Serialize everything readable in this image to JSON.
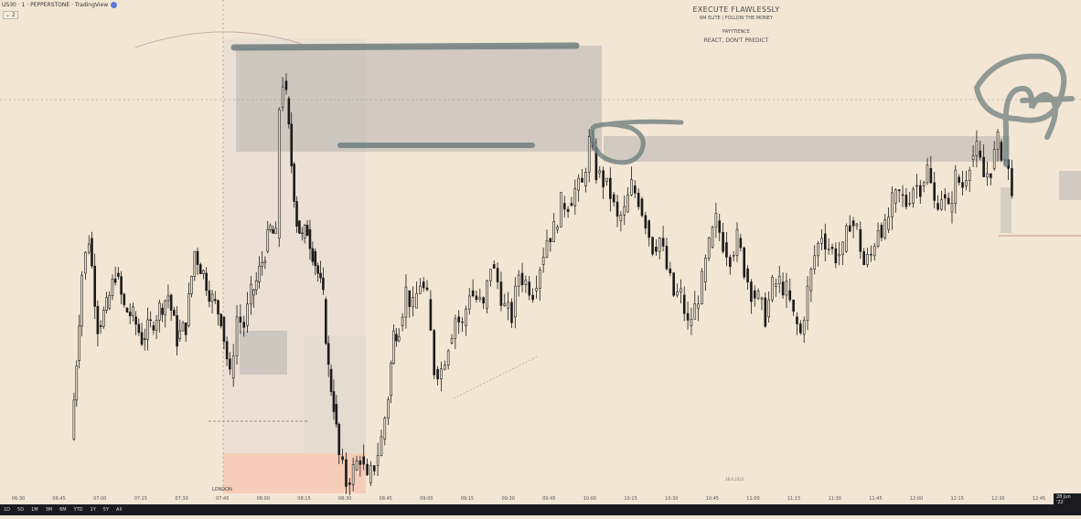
{
  "header": {
    "symbol": "US30 · 1 · PEPPERSTONE · TradingView",
    "badge": "8",
    "collapse_button": "⌄ 2"
  },
  "watermark": {
    "title": "EXECUTE FLAWLESSLY",
    "subtitle": "6M ELITE  |  FOLLOW THE MONEY",
    "line3": "PAYYTIENCE",
    "line4": "REACT, DON'T PREDICT"
  },
  "session_label": "LONDON",
  "date_pill": "28 Jun '22",
  "center_stamp": "28.6.2022",
  "timeframes": [
    "1D",
    "5D",
    "1M",
    "3M",
    "6M",
    "YTD",
    "1Y",
    "5Y",
    "All"
  ],
  "colors": {
    "background": "#f4e6d4",
    "candle": "#1a1a1a",
    "zone": "#a9a9a9",
    "marker": "#6f7f7f",
    "session_fill": "#f6c8b4"
  },
  "chart_data": {
    "type": "candlestick",
    "x_tick_labels": [
      "06:30",
      "06:45",
      "07:00",
      "07:15",
      "07:30",
      "07:45",
      "08:00",
      "08:15",
      "08:30",
      "08:45",
      "09:00",
      "09:15",
      "09:30",
      "09:45",
      "10:00",
      "10:15",
      "10:30",
      "10:45",
      "11:00",
      "11:15",
      "11:30",
      "11:45",
      "12:00",
      "12:15",
      "12:30",
      "12:45"
    ],
    "y_range": [
      0,
      100
    ],
    "grid": false,
    "path_points": [
      [
        0,
        12
      ],
      [
        3,
        30
      ],
      [
        6,
        50
      ],
      [
        10,
        58
      ],
      [
        15,
        38
      ],
      [
        20,
        42
      ],
      [
        25,
        50
      ],
      [
        30,
        42
      ],
      [
        35,
        40
      ],
      [
        40,
        35
      ],
      [
        45,
        38
      ],
      [
        50,
        42
      ],
      [
        55,
        45
      ],
      [
        60,
        35
      ],
      [
        65,
        38
      ],
      [
        70,
        55
      ],
      [
        75,
        50
      ],
      [
        80,
        44
      ],
      [
        85,
        40
      ],
      [
        90,
        26
      ],
      [
        94,
        40
      ],
      [
        98,
        38
      ],
      [
        102,
        45
      ],
      [
        105,
        48
      ],
      [
        110,
        55
      ],
      [
        113,
        60
      ],
      [
        116,
        58
      ],
      [
        118,
        88
      ],
      [
        120,
        94
      ],
      [
        122,
        90
      ],
      [
        125,
        75
      ],
      [
        128,
        62
      ],
      [
        131,
        58
      ],
      [
        134,
        60
      ],
      [
        137,
        55
      ],
      [
        140,
        50
      ],
      [
        143,
        44
      ],
      [
        146,
        28
      ],
      [
        149,
        20
      ],
      [
        152,
        8
      ],
      [
        156,
        2
      ],
      [
        160,
        5
      ],
      [
        164,
        8
      ],
      [
        168,
        2
      ],
      [
        172,
        6
      ],
      [
        176,
        12
      ],
      [
        180,
        22
      ],
      [
        183,
        36
      ],
      [
        186,
        38
      ],
      [
        190,
        46
      ],
      [
        194,
        42
      ],
      [
        198,
        48
      ],
      [
        202,
        44
      ],
      [
        206,
        28
      ],
      [
        210,
        28
      ],
      [
        214,
        34
      ],
      [
        218,
        40
      ],
      [
        222,
        38
      ],
      [
        226,
        46
      ],
      [
        230,
        44
      ],
      [
        234,
        42
      ],
      [
        238,
        52
      ],
      [
        242,
        48
      ],
      [
        246,
        42
      ],
      [
        250,
        40
      ],
      [
        254,
        50
      ],
      [
        258,
        48
      ],
      [
        262,
        46
      ],
      [
        266,
        52
      ],
      [
        270,
        58
      ],
      [
        274,
        60
      ],
      [
        278,
        66
      ],
      [
        282,
        66
      ],
      [
        286,
        69
      ],
      [
        290,
        70
      ],
      [
        294,
        80
      ],
      [
        298,
        73
      ],
      [
        302,
        71
      ],
      [
        306,
        68
      ],
      [
        310,
        62
      ],
      [
        314,
        64
      ],
      [
        318,
        70
      ],
      [
        322,
        67
      ],
      [
        326,
        62
      ],
      [
        330,
        56
      ],
      [
        334,
        58
      ],
      [
        338,
        51
      ],
      [
        342,
        45
      ],
      [
        346,
        45
      ],
      [
        350,
        38
      ],
      [
        354,
        42
      ],
      [
        358,
        48
      ],
      [
        362,
        56
      ],
      [
        366,
        62
      ],
      [
        370,
        57
      ],
      [
        374,
        54
      ],
      [
        378,
        58
      ],
      [
        382,
        51
      ],
      [
        386,
        46
      ],
      [
        390,
        44
      ],
      [
        394,
        40
      ],
      [
        398,
        47
      ],
      [
        402,
        48
      ],
      [
        406,
        46
      ],
      [
        410,
        40
      ],
      [
        414,
        36
      ],
      [
        418,
        46
      ],
      [
        422,
        54
      ],
      [
        426,
        59
      ],
      [
        430,
        56
      ],
      [
        434,
        54
      ],
      [
        438,
        55
      ],
      [
        442,
        62
      ],
      [
        446,
        60
      ],
      [
        450,
        52
      ],
      [
        454,
        54
      ],
      [
        458,
        61
      ],
      [
        462,
        60
      ],
      [
        466,
        66
      ],
      [
        470,
        68
      ],
      [
        474,
        66
      ],
      [
        478,
        70
      ],
      [
        482,
        70
      ],
      [
        486,
        74
      ],
      [
        490,
        66
      ],
      [
        494,
        68
      ],
      [
        498,
        64
      ],
      [
        502,
        72
      ],
      [
        506,
        70
      ],
      [
        510,
        76
      ],
      [
        514,
        78
      ],
      [
        518,
        72
      ],
      [
        522,
        74
      ],
      [
        526,
        80
      ],
      [
        530,
        76
      ],
      [
        534,
        70
      ]
    ],
    "x_range": [
      0,
      540
    ],
    "points_y_range": [
      0,
      100
    ],
    "zones": [
      {
        "label": "upper supply zone"
      },
      {
        "label": "secondary supply zone"
      }
    ]
  }
}
